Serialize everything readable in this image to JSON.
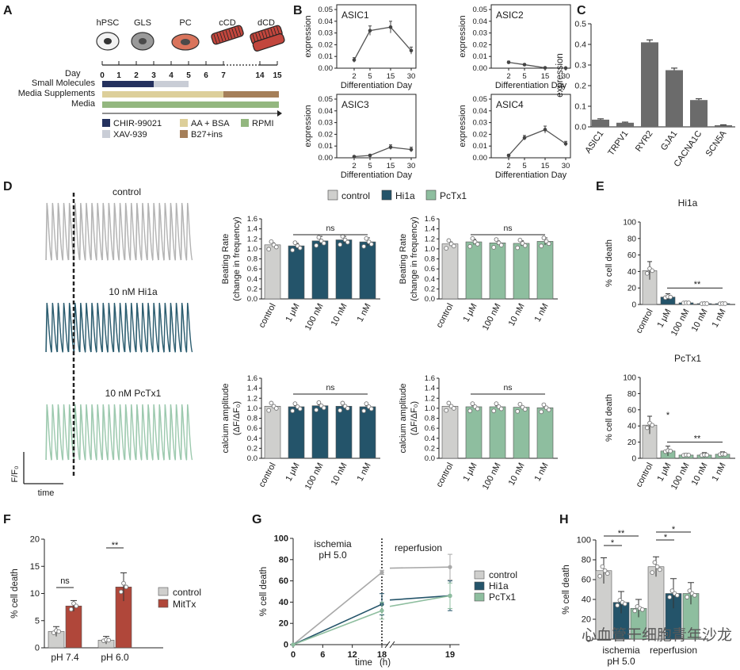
{
  "colors": {
    "control": "#cfcfcd",
    "hi1a": "#24546a",
    "pctx1": "#8ebe9f",
    "mittx": "#b0473a",
    "chir": "#24315e",
    "xav": "#c9cdd6",
    "aa": "#ddcf9a",
    "b27": "#a57f59",
    "rpmi": "#93b77f",
    "line": "#555555",
    "trace_control": "#b3b3b3",
    "trace_hi1a": "#2b5c6f",
    "trace_pctx1": "#9cc9ae"
  },
  "panelA": {
    "letter": "A",
    "stages": [
      "hPSC",
      "GLS",
      "PC",
      "cCD",
      "dCD"
    ],
    "day_label": "Day",
    "days": [
      "0",
      "1",
      "2",
      "3",
      "4",
      "5",
      "6",
      "7",
      "14",
      "15"
    ],
    "row_labels": [
      "Small Molecules",
      "Media Supplements",
      "Media"
    ],
    "legend": [
      "CHIR-99021",
      "AA + BSA",
      "RPMI",
      "XAV-939",
      "B27+ins"
    ]
  },
  "panelB": {
    "letter": "B",
    "xlabel": "Differentiation Day",
    "ylabel": "expression",
    "ticks_x": [
      "2",
      "5",
      "15",
      "30"
    ],
    "ticks_y": [
      "0.00",
      "0.01",
      "0.02",
      "0.03",
      "0.04",
      "0.05"
    ],
    "plots": [
      {
        "name": "ASIC1",
        "values": [
          0.007,
          0.032,
          0.035,
          0.015
        ],
        "errors": [
          0.002,
          0.004,
          0.005,
          0.003
        ]
      },
      {
        "name": "ASIC2",
        "values": [
          0.005,
          0.003,
          0.0003,
          0.0001
        ],
        "errors": [
          0.001,
          0.0008,
          0.0004,
          0.0002
        ]
      },
      {
        "name": "ASIC3",
        "values": [
          0.001,
          0.002,
          0.009,
          0.007
        ],
        "errors": [
          0.0006,
          0.0008,
          0.002,
          0.002
        ]
      },
      {
        "name": "ASIC4",
        "values": [
          0.002,
          0.017,
          0.024,
          0.012
        ],
        "errors": [
          0.0008,
          0.002,
          0.003,
          0.002
        ]
      }
    ]
  },
  "panelC": {
    "letter": "C",
    "ylabel": "expression",
    "ticks_y": [
      "0.0",
      "0.1",
      "0.2",
      "0.3",
      "0.4",
      "0.5"
    ],
    "categories": [
      "ASIC1",
      "TRPV1",
      "RYR2",
      "GJA1",
      "CACNA1C",
      "SCN5A"
    ],
    "values": [
      0.035,
      0.02,
      0.41,
      0.275,
      0.13,
      0.008
    ],
    "errors": [
      0.004,
      0.003,
      0.012,
      0.01,
      0.006,
      0.002
    ]
  },
  "panelD": {
    "letter": "D",
    "trace_labels": [
      "control",
      "10 nM Hi1a",
      "10 nM PcTx1"
    ],
    "legend": [
      "control",
      "Hi1a",
      "PcTx1"
    ],
    "scale_y": "F/F₀",
    "scale_x": "time",
    "categories": [
      "control",
      "1 μM",
      "100 nM",
      "10 nM",
      "1 nM"
    ],
    "ns": "ns",
    "rate_label": [
      "Beating Rate",
      "(change in frequency)"
    ],
    "amp_label": [
      "calcium amplitude",
      "(ΔF/ΔF₀)"
    ],
    "ticks_y": [
      "0.0",
      "0.2",
      "0.4",
      "0.6",
      "0.8",
      "1.0",
      "1.2",
      "1.4",
      "1.6"
    ],
    "rate_hi1a": {
      "values": [
        1.08,
        1.06,
        1.16,
        1.18,
        1.14
      ],
      "errors": [
        0.04,
        0.05,
        0.09,
        0.07,
        0.08
      ]
    },
    "rate_pctx1": {
      "values": [
        1.1,
        1.14,
        1.12,
        1.11,
        1.15
      ],
      "errors": [
        0.04,
        0.05,
        0.04,
        0.05,
        0.07
      ]
    },
    "amp_hi1a": {
      "values": [
        1.04,
        1.03,
        1.05,
        1.04,
        1.03
      ],
      "errors": [
        0.03,
        0.02,
        0.02,
        0.02,
        0.02
      ]
    },
    "amp_pctx1": {
      "values": [
        1.04,
        1.03,
        1.03,
        1.02,
        1.01
      ],
      "errors": [
        0.03,
        0.02,
        0.02,
        0.03,
        0.02
      ]
    }
  },
  "panelE": {
    "letter": "E",
    "ylabel": "% cell death",
    "ticks_y": [
      "0",
      "20",
      "40",
      "60",
      "80",
      "100"
    ],
    "categories": [
      "control",
      "1 μM",
      "100 nM",
      "10 nM",
      "1 nM"
    ],
    "plots": [
      {
        "title": "Hi1a",
        "values": [
          41,
          9,
          2,
          1,
          1
        ],
        "errors": [
          11,
          4,
          1,
          1,
          1
        ],
        "sig": "**"
      },
      {
        "title": "PcTx1",
        "values": [
          41,
          9,
          4,
          4,
          5
        ],
        "errors": [
          11,
          6,
          2,
          3,
          3
        ],
        "sig": "**",
        "sig2": "*"
      }
    ]
  },
  "panelF": {
    "letter": "F",
    "ylabel": "% cell death",
    "ticks_y": [
      "0",
      "5",
      "10",
      "15",
      "20"
    ],
    "groups": [
      "pH 7.4",
      "pH 6.0"
    ],
    "legend": [
      "control",
      "MitTx"
    ],
    "control": {
      "values": [
        3.0,
        1.4
      ],
      "errors": [
        0.9,
        0.7
      ]
    },
    "mittx": {
      "values": [
        7.7,
        11.2
      ],
      "errors": [
        1.0,
        2.6
      ]
    },
    "ns": "ns",
    "sig": "**"
  },
  "panelG": {
    "letter": "G",
    "ylabel": "% cell death",
    "ticks_x": [
      "0",
      "6",
      "12",
      "18",
      "19"
    ],
    "ticks_y": [
      "0",
      "20",
      "40",
      "60",
      "80",
      "100"
    ],
    "xlabel": "time",
    "xunit": "(h)",
    "ischemia": [
      "ischemia",
      "pH 5.0"
    ],
    "reperfusion": "reperfusion",
    "legend": [
      "control",
      "Hi1a",
      "PcTx1"
    ],
    "series": [
      {
        "name": "control",
        "x": [
          0,
          18,
          19
        ],
        "y": [
          0,
          68,
          73
        ],
        "err": [
          0,
          2,
          12
        ]
      },
      {
        "name": "Hi1a",
        "x": [
          0,
          18,
          19
        ],
        "y": [
          0,
          38,
          46
        ],
        "err": [
          0,
          10,
          14
        ]
      },
      {
        "name": "PcTx1",
        "x": [
          0,
          18,
          19
        ],
        "y": [
          0,
          32,
          46
        ],
        "err": [
          0,
          8,
          12
        ]
      }
    ]
  },
  "panelH": {
    "letter": "H",
    "ylabel": "% cell death",
    "ticks_y": [
      "0",
      "20",
      "40",
      "60",
      "80",
      "100"
    ],
    "groups": [
      "ischemia",
      "reperfusion"
    ],
    "ph": "pH 5.0",
    "control": {
      "values": [
        69,
        73
      ],
      "errors": [
        13,
        10
      ]
    },
    "hi1a": {
      "values": [
        37,
        46
      ],
      "errors": [
        11,
        15
      ]
    },
    "pctx1": {
      "values": [
        31,
        46
      ],
      "errors": [
        9,
        11
      ]
    },
    "sig": [
      "*",
      "**",
      "*",
      "*"
    ]
  },
  "watermark": "心血管干细胞青年沙龙",
  "chart_data": [
    {
      "type": "line",
      "title": "ASIC1",
      "x": [
        2,
        5,
        15,
        30
      ],
      "y": [
        0.007,
        0.032,
        0.035,
        0.015
      ],
      "xlabel": "Differentiation Day",
      "ylabel": "expression",
      "ylim": [
        0,
        0.05
      ]
    },
    {
      "type": "line",
      "title": "ASIC2",
      "x": [
        2,
        5,
        15,
        30
      ],
      "y": [
        0.005,
        0.003,
        0.0003,
        0.0001
      ],
      "xlabel": "Differentiation Day",
      "ylabel": "expression",
      "ylim": [
        0,
        0.05
      ]
    },
    {
      "type": "line",
      "title": "ASIC3",
      "x": [
        2,
        5,
        15,
        30
      ],
      "y": [
        0.001,
        0.002,
        0.009,
        0.007
      ],
      "xlabel": "Differentiation Day",
      "ylabel": "expression",
      "ylim": [
        0,
        0.05
      ]
    },
    {
      "type": "line",
      "title": "ASIC4",
      "x": [
        2,
        5,
        15,
        30
      ],
      "y": [
        0.002,
        0.017,
        0.024,
        0.012
      ],
      "xlabel": "Differentiation Day",
      "ylabel": "expression",
      "ylim": [
        0,
        0.05
      ]
    },
    {
      "type": "bar",
      "title": "C",
      "categories": [
        "ASIC1",
        "TRPV1",
        "RYR2",
        "GJA1",
        "CACNA1C",
        "SCN5A"
      ],
      "values": [
        0.035,
        0.02,
        0.41,
        0.275,
        0.13,
        0.008
      ],
      "ylabel": "expression",
      "ylim": [
        0,
        0.5
      ]
    },
    {
      "type": "bar",
      "title": "Beating Rate - Hi1a",
      "categories": [
        "control",
        "1 μM",
        "100 nM",
        "10 nM",
        "1 nM"
      ],
      "values": [
        1.08,
        1.06,
        1.16,
        1.18,
        1.14
      ],
      "ylim": [
        0,
        1.6
      ]
    },
    {
      "type": "bar",
      "title": "Beating Rate - PcTx1",
      "categories": [
        "control",
        "1 μM",
        "100 nM",
        "10 nM",
        "1 nM"
      ],
      "values": [
        1.1,
        1.14,
        1.12,
        1.11,
        1.15
      ],
      "ylim": [
        0,
        1.6
      ]
    },
    {
      "type": "bar",
      "title": "Calcium amplitude - Hi1a",
      "categories": [
        "control",
        "1 μM",
        "100 nM",
        "10 nM",
        "1 nM"
      ],
      "values": [
        1.04,
        1.03,
        1.05,
        1.04,
        1.03
      ],
      "ylim": [
        0,
        1.6
      ]
    },
    {
      "type": "bar",
      "title": "Calcium amplitude - PcTx1",
      "categories": [
        "control",
        "1 μM",
        "100 nM",
        "10 nM",
        "1 nM"
      ],
      "values": [
        1.04,
        1.03,
        1.03,
        1.02,
        1.01
      ],
      "ylim": [
        0,
        1.6
      ]
    },
    {
      "type": "bar",
      "title": "Hi1a",
      "categories": [
        "control",
        "1 μM",
        "100 nM",
        "10 nM",
        "1 nM"
      ],
      "values": [
        41,
        9,
        2,
        1,
        1
      ],
      "ylabel": "% cell death",
      "ylim": [
        0,
        100
      ]
    },
    {
      "type": "bar",
      "title": "PcTx1",
      "categories": [
        "control",
        "1 μM",
        "100 nM",
        "10 nM",
        "1 nM"
      ],
      "values": [
        41,
        9,
        4,
        4,
        5
      ],
      "ylabel": "% cell death",
      "ylim": [
        0,
        100
      ]
    },
    {
      "type": "bar",
      "title": "F",
      "categories": [
        "pH 7.4",
        "pH 6.0"
      ],
      "series": [
        {
          "name": "control",
          "values": [
            3.0,
            1.4
          ]
        },
        {
          "name": "MitTx",
          "values": [
            7.7,
            11.2
          ]
        }
      ],
      "ylabel": "% cell death",
      "ylim": [
        0,
        20
      ]
    },
    {
      "type": "line",
      "title": "G",
      "x": [
        0,
        18,
        19
      ],
      "series": [
        {
          "name": "control",
          "values": [
            0,
            68,
            73
          ]
        },
        {
          "name": "Hi1a",
          "values": [
            0,
            38,
            46
          ]
        },
        {
          "name": "PcTx1",
          "values": [
            0,
            32,
            46
          ]
        }
      ],
      "xlabel": "time (h)",
      "ylabel": "% cell death",
      "ylim": [
        0,
        100
      ]
    },
    {
      "type": "bar",
      "title": "H",
      "categories": [
        "ischemia pH 5.0",
        "reperfusion"
      ],
      "series": [
        {
          "name": "control",
          "values": [
            69,
            73
          ]
        },
        {
          "name": "Hi1a",
          "values": [
            37,
            46
          ]
        },
        {
          "name": "PcTx1",
          "values": [
            31,
            46
          ]
        }
      ],
      "ylabel": "% cell death",
      "ylim": [
        0,
        100
      ]
    }
  ]
}
